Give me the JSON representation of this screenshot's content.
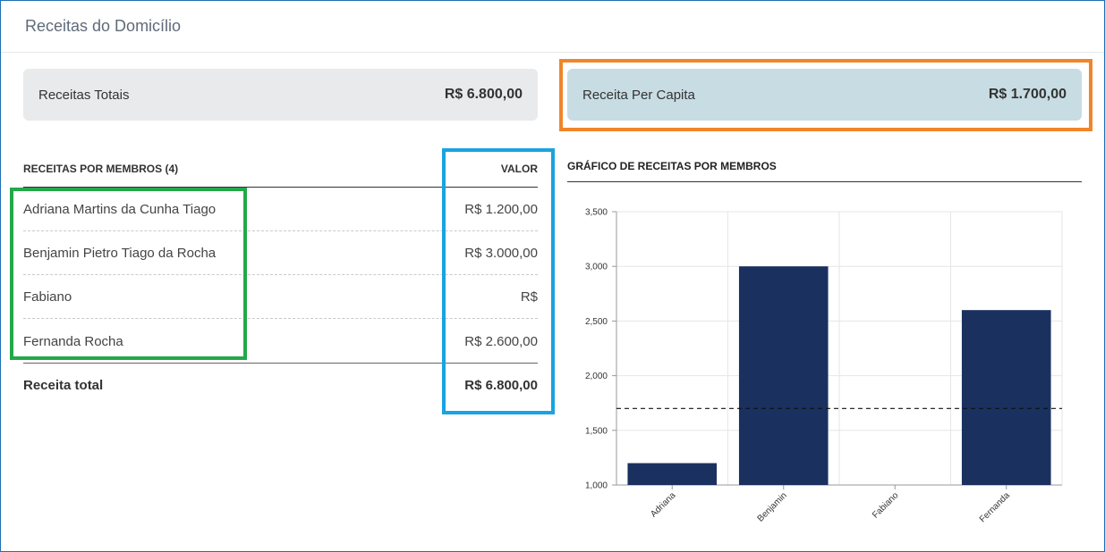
{
  "page": {
    "title": "Receitas do Domicílio"
  },
  "summary": {
    "total": {
      "label": "Receitas Totais",
      "value": "R$ 6.800,00"
    },
    "per_capita": {
      "label": "Receita Per Capita",
      "value": "R$ 1.700,00"
    }
  },
  "table": {
    "header": {
      "members": "RECEITAS POR MEMBROS (4)",
      "value": "VALOR"
    },
    "rows": [
      {
        "name": "Adriana Martins da Cunha Tiago",
        "value": "R$ 1.200,00"
      },
      {
        "name": "Benjamin Pietro Tiago da Rocha",
        "value": "R$ 3.000,00"
      },
      {
        "name": "Fabiano",
        "value": "R$"
      },
      {
        "name": "Fernanda Rocha",
        "value": "R$ 2.600,00"
      }
    ],
    "total": {
      "label": "Receita total",
      "value": "R$ 6.800,00"
    }
  },
  "chart_title": "GRÁFICO DE RECEITAS POR MEMBROS",
  "colors": {
    "bar": "#1a3160",
    "orange": "#f0852b",
    "blue": "#1aa3e0",
    "green": "#24a84a"
  },
  "chart_data": {
    "type": "bar",
    "categories": [
      "Adriana",
      "Benjamin",
      "Fabiano",
      "Fernanda"
    ],
    "values": [
      1200,
      3000,
      null,
      2600
    ],
    "ylim": [
      1000,
      3500
    ],
    "yticks": [
      1000,
      1500,
      2000,
      2500,
      3000,
      3500
    ],
    "ytick_labels": [
      "1,000",
      "1,500",
      "2,000",
      "2,500",
      "3,000",
      "3,500"
    ],
    "reference_line": 1700,
    "grid": true,
    "title": "",
    "xlabel": "",
    "ylabel": ""
  }
}
